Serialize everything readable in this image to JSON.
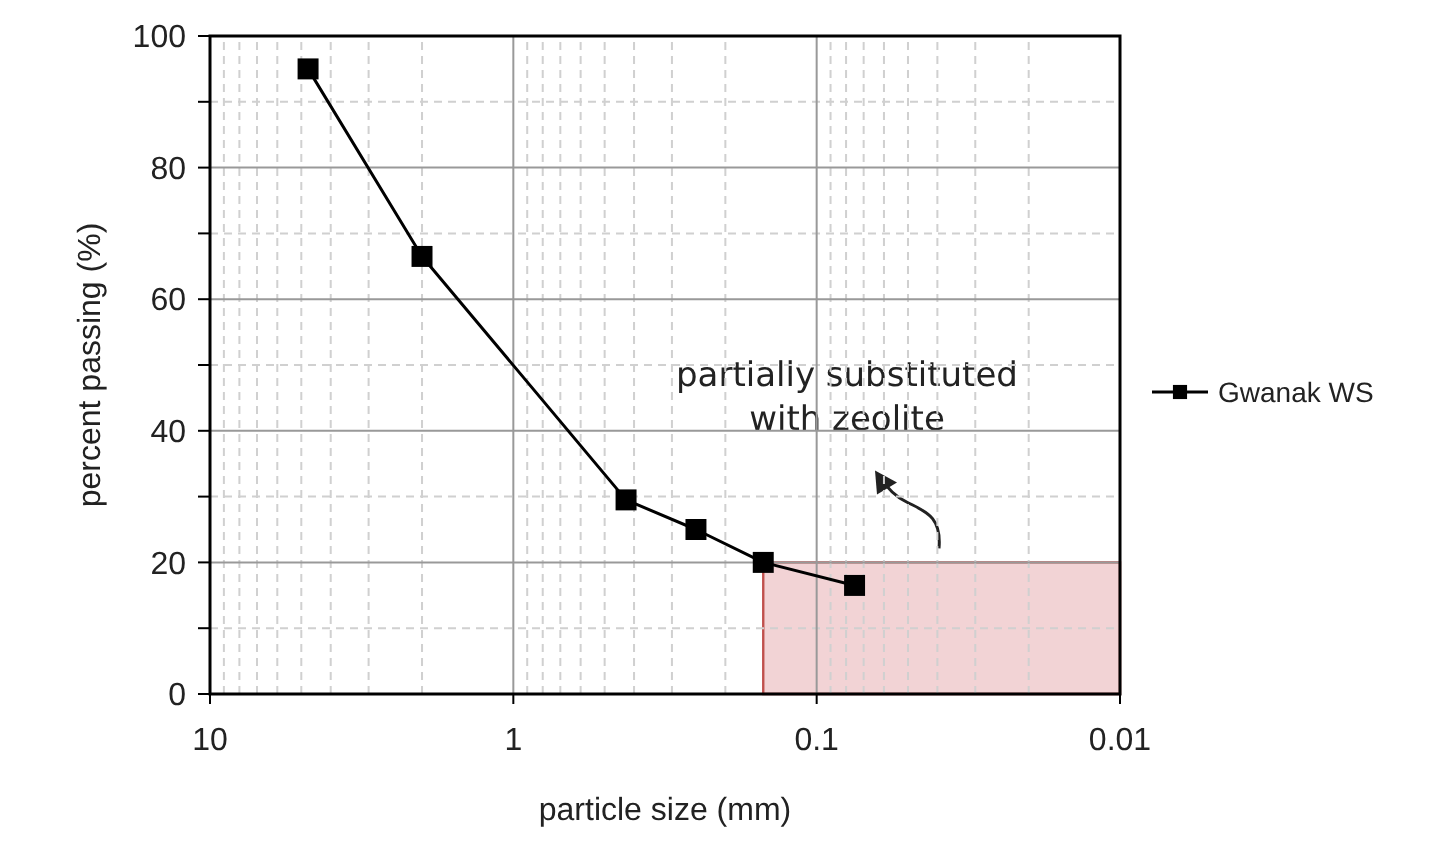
{
  "chart_data": {
    "type": "line",
    "xlabel": "particle size (mm)",
    "ylabel": "percent passing (%)",
    "log": "x",
    "xlim": [
      10,
      0.01
    ],
    "xticks": [
      10,
      1,
      0.1,
      0.01
    ],
    "ylim": [
      0,
      100
    ],
    "yticks": [
      0,
      {
        "value": 10,
        "label": null
      },
      20,
      {
        "value": 30,
        "label": null
      },
      40,
      {
        "value": 50,
        "label": null
      },
      60,
      {
        "value": 70,
        "label": null
      },
      80,
      {
        "value": 90,
        "label": null
      },
      100
    ],
    "grid": true,
    "legend": "right",
    "line_style": "solid",
    "x": [
      4.75,
      2,
      0.425,
      0.25,
      0.15,
      0.075
    ],
    "series": [
      {
        "type": "area",
        "color": "#f2d3d5",
        "marker": "none",
        "x": [
          0.15,
          0.01
        ],
        "values": [
          20,
          20
        ]
      },
      {
        "name": "Gwanak WS",
        "color": "#000000",
        "marker": "square",
        "values": [
          95,
          66.5,
          29.5,
          25,
          20,
          16.5
        ]
      }
    ],
    "annotations": [
      "partially substituted with zeolite"
    ]
  }
}
